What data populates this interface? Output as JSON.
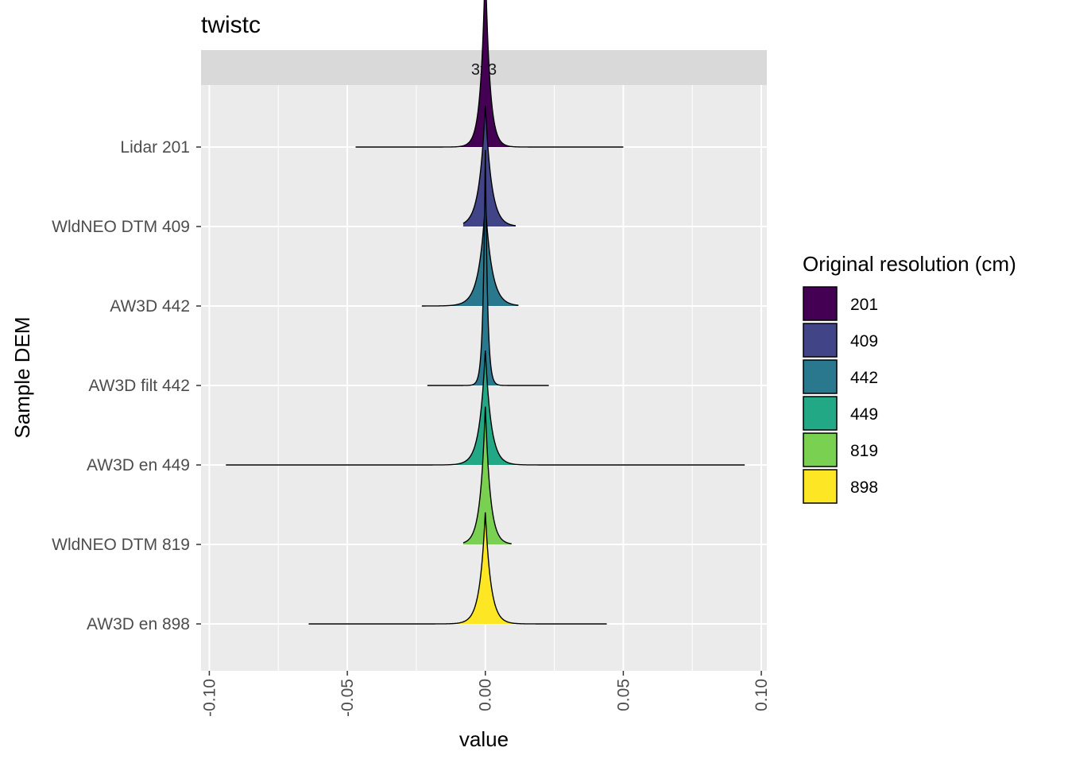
{
  "chart_data": {
    "type": "ridgeline",
    "title": "twistc",
    "facet": "3x3",
    "xlabel": "value",
    "ylabel": "Sample DEM",
    "xlim": [
      -0.103,
      0.102
    ],
    "x_ticks": [
      -0.1,
      -0.05,
      0.0,
      0.05,
      0.1
    ],
    "x_tick_labels": [
      "-0.10",
      "-0.05",
      "0.00",
      "0.05",
      "0.10"
    ],
    "grid": true,
    "legend": {
      "title": "Original resolution (cm)",
      "placement": "right",
      "entries": [
        {
          "label": "201",
          "color": "#440154"
        },
        {
          "label": "409",
          "color": "#414487"
        },
        {
          "label": "442",
          "color": "#2A788E"
        },
        {
          "label": "449",
          "color": "#22A884"
        },
        {
          "label": "819",
          "color": "#7AD151"
        },
        {
          "label": "898",
          "color": "#FDE725"
        }
      ]
    },
    "series": [
      {
        "name": "Lidar 201",
        "group": "201",
        "color": "#440154",
        "min": -0.047,
        "max": 0.05,
        "peak": 0.0,
        "height": 0.78,
        "spread": 0.0016
      },
      {
        "name": "WldNEO DTM 409",
        "group": "409",
        "color": "#414487",
        "min": -0.008,
        "max": 0.011,
        "peak": 0.0,
        "height": 0.51,
        "spread": 0.0022
      },
      {
        "name": "AW3D 442",
        "group": "442",
        "color": "#2A788E",
        "min": -0.023,
        "max": 0.012,
        "peak": 0.0,
        "height": 0.43,
        "spread": 0.0024
      },
      {
        "name": "AW3D filt 442",
        "group": "442",
        "color": "#2A788E",
        "min": -0.021,
        "max": 0.023,
        "peak": 0.0,
        "height": 1.0,
        "spread": 0.0008
      },
      {
        "name": "AW3D en 449",
        "group": "449",
        "color": "#22A884",
        "min": -0.094,
        "max": 0.094,
        "peak": 0.0,
        "height": 0.48,
        "spread": 0.0021
      },
      {
        "name": "WldNEO DTM 819",
        "group": "819",
        "color": "#7AD151",
        "min": -0.008,
        "max": 0.0095,
        "peak": 0.0,
        "height": 0.58,
        "spread": 0.0018
      },
      {
        "name": "AW3D en 898",
        "group": "898",
        "color": "#FDE725",
        "min": -0.064,
        "max": 0.044,
        "peak": 0.0,
        "height": 0.47,
        "spread": 0.002
      }
    ]
  }
}
